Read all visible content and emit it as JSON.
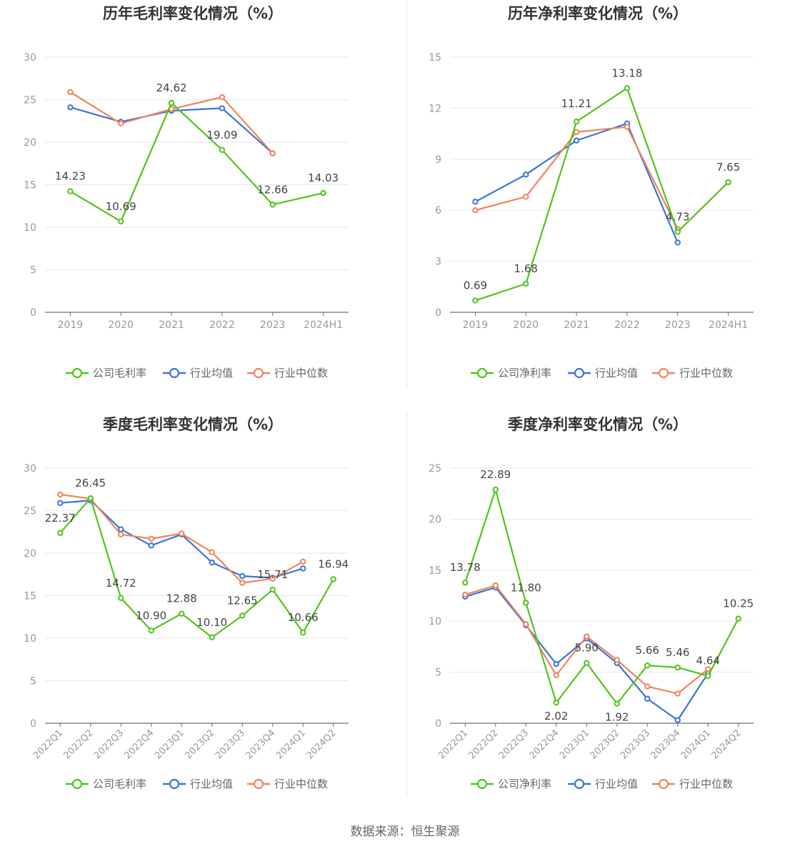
{
  "source": "数据来源：恒生聚源",
  "colors": {
    "company": "#52c41a",
    "avg": "#3a75d9",
    "median": "#f0845c",
    "grid": "#e6e6f0",
    "axis": "#707070",
    "tick": "#999999"
  },
  "chart_data": [
    {
      "type": "line",
      "title": "历年毛利率变化情况（%）",
      "xlabel": "",
      "ylabel": "",
      "categories": [
        "2019",
        "2020",
        "2021",
        "2022",
        "2023",
        "2024H1"
      ],
      "ylim": [
        0,
        30
      ],
      "yticks": [
        0,
        5,
        10,
        15,
        20,
        25,
        30
      ],
      "rotate_x": false,
      "legend": "bottom",
      "series": [
        {
          "name": "公司毛利率",
          "values": [
            14.23,
            10.69,
            24.62,
            19.09,
            12.66,
            14.03
          ],
          "labels": [
            "14.23",
            "10.69",
            "24.62",
            "19.09",
            "12.66",
            "14.03"
          ]
        },
        {
          "name": "行业均值",
          "values": [
            24.1,
            22.4,
            23.7,
            24.0,
            18.7,
            null
          ]
        },
        {
          "name": "行业中位数",
          "values": [
            25.9,
            22.2,
            23.9,
            25.3,
            18.7,
            null
          ]
        }
      ]
    },
    {
      "type": "line",
      "title": "历年净利率变化情况（%）",
      "xlabel": "",
      "ylabel": "",
      "categories": [
        "2019",
        "2020",
        "2021",
        "2022",
        "2023",
        "2024H1"
      ],
      "ylim": [
        0,
        15
      ],
      "yticks": [
        0,
        3,
        6,
        9,
        12,
        15
      ],
      "rotate_x": false,
      "legend": "bottom",
      "series": [
        {
          "name": "公司净利率",
          "values": [
            0.69,
            1.68,
            11.21,
            13.18,
            4.73,
            7.65
          ],
          "labels": [
            "0.69",
            "1.68",
            "11.21",
            "13.18",
            "4.73",
            "7.65"
          ]
        },
        {
          "name": "行业均值",
          "values": [
            6.5,
            8.1,
            10.1,
            11.1,
            4.1,
            null
          ]
        },
        {
          "name": "行业中位数",
          "values": [
            6.0,
            6.8,
            10.6,
            10.9,
            4.9,
            null
          ]
        }
      ]
    },
    {
      "type": "line",
      "title": "季度毛利率变化情况（%）",
      "xlabel": "",
      "ylabel": "",
      "categories": [
        "2022Q1",
        "2022Q2",
        "2022Q3",
        "2022Q4",
        "2023Q1",
        "2023Q2",
        "2023Q3",
        "2023Q4",
        "2024Q1",
        "2024Q2"
      ],
      "ylim": [
        0,
        30
      ],
      "yticks": [
        0,
        5,
        10,
        15,
        20,
        25,
        30
      ],
      "rotate_x": true,
      "legend": "bottom",
      "series": [
        {
          "name": "公司毛利率",
          "values": [
            22.37,
            26.45,
            14.72,
            10.9,
            12.88,
            10.1,
            12.65,
            15.71,
            10.66,
            16.94
          ],
          "labels": [
            "22.37",
            "26.45",
            "14.72",
            "10.90",
            "12.88",
            "10.10",
            "12.65",
            "15.71",
            "10.66",
            "16.94"
          ]
        },
        {
          "name": "行业均值",
          "values": [
            25.9,
            26.2,
            22.8,
            20.9,
            22.2,
            18.9,
            17.3,
            17.1,
            18.2,
            null
          ]
        },
        {
          "name": "行业中位数",
          "values": [
            26.9,
            26.4,
            22.2,
            21.7,
            22.3,
            20.1,
            16.5,
            17.0,
            19.0,
            null
          ]
        }
      ]
    },
    {
      "type": "line",
      "title": "季度净利率变化情况（%）",
      "xlabel": "",
      "ylabel": "",
      "categories": [
        "2022Q1",
        "2022Q2",
        "2022Q3",
        "2022Q4",
        "2023Q1",
        "2023Q2",
        "2023Q3",
        "2023Q4",
        "2024Q1",
        "2024Q2"
      ],
      "ylim": [
        0,
        25
      ],
      "yticks": [
        0,
        5,
        10,
        15,
        20,
        25
      ],
      "rotate_x": true,
      "legend": "bottom",
      "series": [
        {
          "name": "公司净利率",
          "values": [
            13.78,
            22.89,
            11.8,
            2.02,
            5.9,
            1.92,
            5.66,
            5.46,
            4.64,
            10.25
          ],
          "labels": [
            "13.78",
            "22.89",
            "11.80",
            "2.02",
            "5.90",
            "1.92",
            "5.66",
            "5.46",
            "4.64",
            "10.25"
          ]
        },
        {
          "name": "行业均值",
          "values": [
            12.4,
            13.3,
            9.6,
            5.8,
            8.3,
            5.9,
            2.4,
            0.3,
            4.9,
            null
          ]
        },
        {
          "name": "行业中位数",
          "values": [
            12.6,
            13.5,
            9.7,
            4.7,
            8.5,
            6.2,
            3.6,
            2.9,
            5.3,
            null
          ]
        }
      ]
    }
  ]
}
